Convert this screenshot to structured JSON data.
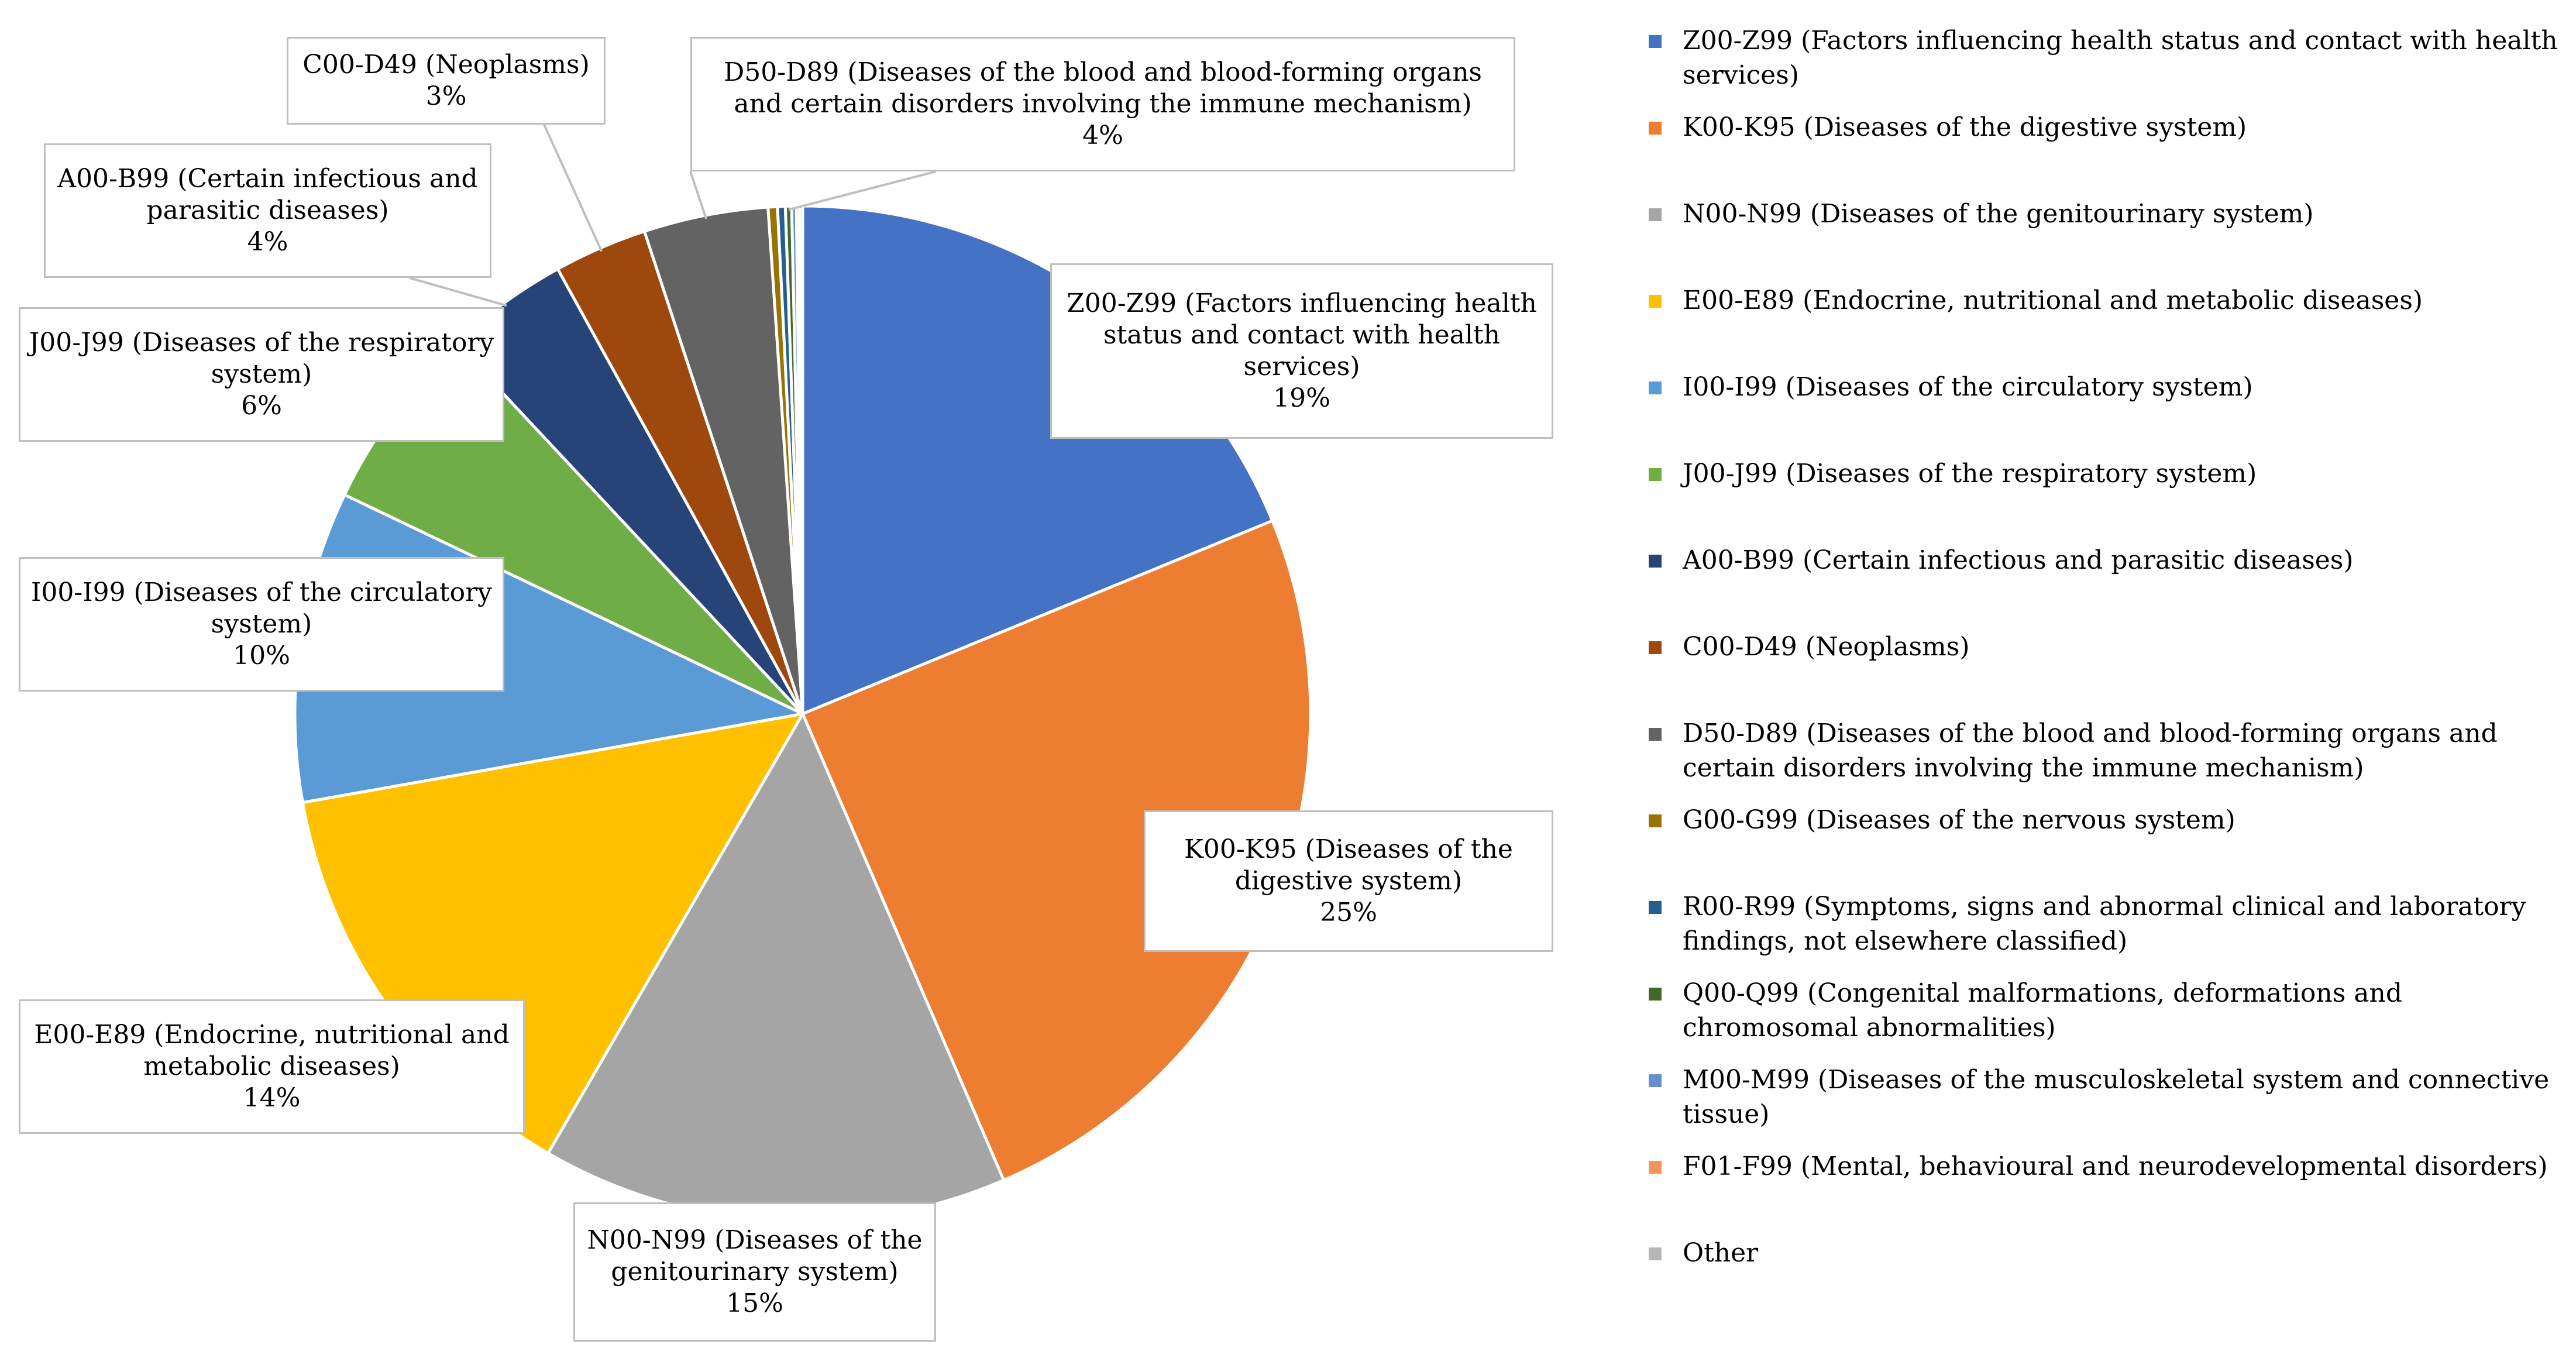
{
  "chart_data": {
    "type": "pie",
    "title": "",
    "slices": [
      {
        "code": "Z00-Z99",
        "legend": "Z00-Z99 (Factors influencing health status and contact with health services)",
        "label": "Z00-Z99 (Factors influencing health status and contact with health services)",
        "pct_text": "19%",
        "value": 19,
        "color": "#4472C4"
      },
      {
        "code": "K00-K95",
        "legend": "K00-K95 (Diseases of the digestive system)",
        "label": "K00-K95 (Diseases of the digestive system)",
        "pct_text": "25%",
        "value": 25,
        "color": "#ED7D31"
      },
      {
        "code": "N00-N99",
        "legend": "N00-N99 (Diseases of the genitourinary system)",
        "label": "N00-N99 (Diseases of the genitourinary system)",
        "pct_text": "15%",
        "value": 15,
        "color": "#A5A5A5"
      },
      {
        "code": "E00-E89",
        "legend": "E00-E89 (Endocrine, nutritional and metabolic diseases)",
        "label": "E00-E89 (Endocrine, nutritional and metabolic diseases)",
        "pct_text": "14%",
        "value": 14,
        "color": "#FFC000"
      },
      {
        "code": "I00-I99",
        "legend": "I00-I99 (Diseases of the circulatory system)",
        "label": "I00-I99 (Diseases of the circulatory system)",
        "pct_text": "10%",
        "value": 10,
        "color": "#5B9BD5"
      },
      {
        "code": "J00-J99",
        "legend": "J00-J99 (Diseases of the respiratory system)",
        "label": "J00-J99 (Diseases of the respiratory system)",
        "pct_text": "6%",
        "value": 6,
        "color": "#70AD47"
      },
      {
        "code": "A00-B99",
        "legend": "A00-B99 (Certain infectious and parasitic diseases)",
        "label": "A00-B99 (Certain infectious and parasitic diseases)",
        "pct_text": "4%",
        "value": 4,
        "color": "#264478"
      },
      {
        "code": "C00-D49",
        "legend": "C00-D49 (Neoplasms)",
        "label": "C00-D49 (Neoplasms)",
        "pct_text": "3%",
        "value": 3,
        "color": "#9E480E"
      },
      {
        "code": "D50-D89",
        "legend": "D50-D89 (Diseases of the blood and blood-forming organs and certain disorders involving the immune mechanism)",
        "label": "D50-D89 (Diseases of the blood and blood-forming organs and certain disorders involving the immune mechanism)",
        "pct_text": "4%",
        "value": 4,
        "color": "#636363"
      },
      {
        "code": "G00-G99",
        "legend": "G00-G99 (Diseases of the nervous system)",
        "value": 0.3,
        "color": "#997300"
      },
      {
        "code": "R00-R99",
        "legend": "R00-R99 (Symptoms, signs and abnormal clinical and laboratory findings, not elsewhere classified)",
        "value": 0.25,
        "color": "#255E91"
      },
      {
        "code": "Q00-Q99",
        "legend": "Q00-Q99 (Congenital malformations, deformations and chromosomal abnormalities)",
        "value": 0.2,
        "color": "#43682B"
      },
      {
        "code": "M00-M99",
        "legend": "M00-M99 (Diseases of the musculoskeletal system and connective tissue)",
        "value": 0.15,
        "color": "#698ED0"
      },
      {
        "code": "F01-F99",
        "legend": "F01-F99 (Mental, behavioural and neurodevelopmental disorders)",
        "value": 0.1,
        "color": "#F1975A"
      },
      {
        "code": "Other",
        "legend": "Other",
        "value": 0.1,
        "color": "#B7B7B7"
      }
    ],
    "legend_position": "right"
  }
}
